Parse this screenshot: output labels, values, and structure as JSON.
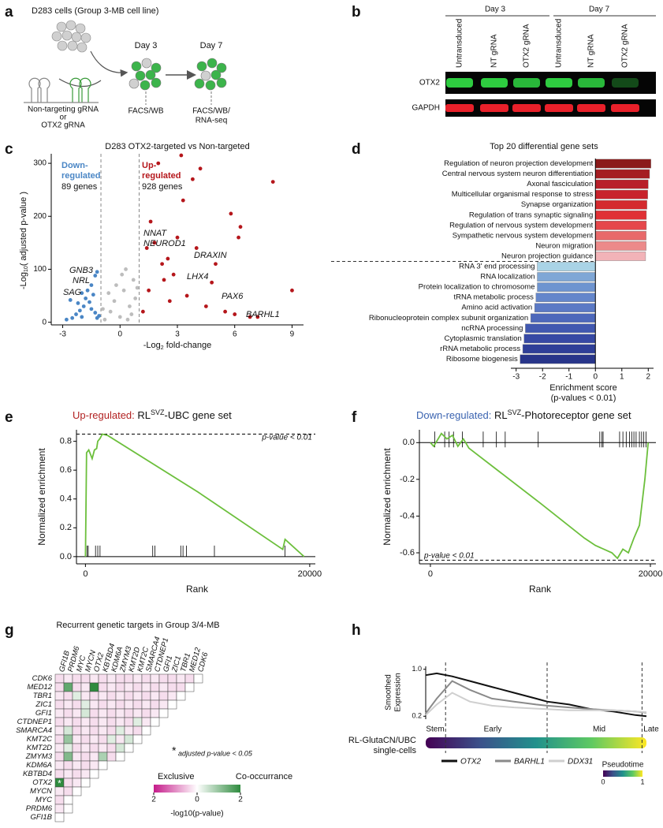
{
  "panel_labels": [
    "a",
    "b",
    "c",
    "d",
    "e",
    "f",
    "g",
    "h"
  ],
  "panel_a": {
    "cell_line": "D283 cells (Group 3-MB cell line)",
    "timepoints": [
      "Day 3",
      "Day 7"
    ],
    "grna": [
      "Non-targeting gRNA",
      "or",
      "OTX2 gRNA"
    ],
    "readouts": [
      "FACS/WB",
      "FACS/WB/",
      "RNA-seq"
    ]
  },
  "panel_b": {
    "days": [
      "Day 3",
      "Day 7"
    ],
    "lanes": [
      "Untransduced",
      "NT gRNA",
      "OTX2 gRNA",
      "Untransduced",
      "NT gRNA",
      "OTX2 gRNA"
    ],
    "proteins": [
      "OTX2",
      "GAPDH"
    ]
  },
  "chart_data": [
    {
      "type": "scatter",
      "title": "D283 OTX2-targeted vs Non-targeted",
      "x_label": [
        "-Log",
        "2",
        " fold-change"
      ],
      "y_label": [
        "-Log",
        "10",
        "( adjusted p-value )"
      ],
      "xlim": [
        -3.6,
        9.6
      ],
      "ylim": [
        -5,
        318
      ],
      "xticks": [
        -3,
        0,
        3,
        6,
        9
      ],
      "yticks": [
        0,
        100,
        200,
        300
      ],
      "thresholds": [
        -1,
        1
      ],
      "down_label": [
        "Down-",
        "regulated",
        "89 genes"
      ],
      "up_label": [
        "Up-",
        "regulated",
        "928 genes"
      ],
      "gene_labels": [
        "GNB3",
        "NRL",
        "SAG",
        "NNAT",
        "NEUROD1",
        "DRAXIN",
        "LHX4",
        "PAX6",
        "BARHL1"
      ],
      "series": [
        {
          "color": "#4a86c5",
          "x": [
            -2.8,
            -2.5,
            -2.3,
            -2.1,
            -2.0,
            -1.9,
            -1.8,
            -1.7,
            -1.6,
            -1.5,
            -1.4,
            -1.3,
            -1.2,
            -1.1,
            -2.2,
            -2.6,
            -1.5,
            -1.3,
            -1.2,
            -2.0
          ],
          "values": [
            5,
            8,
            15,
            22,
            10,
            30,
            45,
            60,
            38,
            25,
            52,
            18,
            8,
            12,
            36,
            42,
            70,
            88,
            95,
            55
          ]
        },
        {
          "color": "#bdbdbd",
          "x": [
            -0.8,
            -0.5,
            -0.3,
            0,
            0.2,
            0.5,
            0.7,
            -0.2,
            0.4,
            0.8,
            -0.6,
            0.1,
            0.6,
            -0.9,
            0.3,
            0.9
          ],
          "values": [
            5,
            20,
            40,
            10,
            60,
            30,
            80,
            70,
            5,
            45,
            55,
            90,
            15,
            25,
            100,
            65
          ]
        },
        {
          "color": "#b5161b",
          "x": [
            1.2,
            1.5,
            2,
            2.3,
            2.5,
            3,
            3.2,
            1.8,
            1.6,
            2.8,
            3.5,
            4,
            4.5,
            5,
            5.5,
            6,
            6.2,
            6.8,
            7.2,
            8,
            9,
            4.2,
            3.8,
            5.8,
            6.3,
            2.2,
            1.4,
            3.3,
            2.6,
            4.8
          ],
          "values": [
            20,
            60,
            300,
            80,
            120,
            160,
            315,
            150,
            190,
            90,
            50,
            140,
            30,
            110,
            20,
            15,
            160,
            10,
            10,
            265,
            60,
            290,
            270,
            205,
            180,
            110,
            140,
            230,
            40,
            75
          ]
        }
      ]
    },
    {
      "type": "barh",
      "title": "Top 20 differential gene sets",
      "x_label": [
        "Enrichment score",
        "(p-values < 0.01)"
      ],
      "xlim": [
        -3.2,
        2.2
      ],
      "xticks": [
        -3,
        -2,
        -1,
        0,
        1,
        2
      ],
      "categories": [
        "Regulation of neuron projection development",
        "Central nervous system neuron differentiation",
        "Axonal fasciculation",
        "Multicellular organismal response to stress",
        "Synapse organization",
        "Regulation of trans synaptic signaling",
        "Regulation of nervous system development",
        "Sympathetic nervous system development",
        "Neuron migration",
        "Neuron projection guidance",
        "RNA 3' end processing",
        "RNA localization",
        "Protein localization to chromosome",
        "tRNA metabolic process",
        "Amino acid activation",
        "Ribonucleoprotein complex subunit organization",
        "ncRNA processing",
        "Cytoplasmic translation",
        "rRNA metabolic process",
        "Ribosome biogenesis"
      ],
      "values": [
        2.1,
        2.05,
        2.0,
        1.98,
        1.95,
        1.93,
        1.93,
        1.92,
        1.92,
        1.9,
        -2.2,
        -2.2,
        -2.2,
        -2.25,
        -2.3,
        -2.45,
        -2.65,
        -2.7,
        -2.75,
        -2.85
      ],
      "colors": [
        "#8b1a1a",
        "#a51d22",
        "#b8202a",
        "#c8232c",
        "#d42a2e",
        "#e03035",
        "#e5474b",
        "#e8696a",
        "#ec8a8a",
        "#f2b3b8",
        "#a9d3e6",
        "#7fa7d6",
        "#6e94d0",
        "#6486cb",
        "#5b79c5",
        "#4d68bb",
        "#4158b0",
        "#3749a4",
        "#2f3f98",
        "#28358a"
      ]
    },
    {
      "type": "line",
      "title": [
        "Up-regulated:",
        " RL",
        "SVZ",
        "-UBC gene set"
      ],
      "title_color": "#b22222",
      "x_label": "Rank",
      "y_label": "Normalized enrichment",
      "annotation": "p-value < 0.01",
      "xlim": [
        -800,
        20500
      ],
      "ylim": [
        -0.05,
        0.88
      ],
      "xticks": [
        0,
        20000
      ],
      "yticks": [
        {
          "value": 0,
          "label": "0.0"
        },
        0.2,
        0.4,
        0.6,
        0.8
      ],
      "peak": 0.85,
      "series": [
        {
          "color": "#6cbf3c",
          "x": [
            0,
            100,
            300,
            600,
            800,
            1000,
            1100,
            1300,
            1500,
            2000,
            10000,
            17600,
            17800,
            19500
          ],
          "values": [
            0,
            0.72,
            0.74,
            0.68,
            0.74,
            0.75,
            0.8,
            0.82,
            0.85,
            0.84,
            0.45,
            0.05,
            0.12,
            0
          ]
        }
      ],
      "hits": [
        150,
        250,
        900,
        1100,
        1300,
        6000,
        6200,
        8500,
        8700,
        9000,
        11500,
        17800
      ]
    },
    {
      "type": "line",
      "title": [
        "Down-regulated:",
        " RL",
        "SVZ",
        "-Photoreceptor gene set"
      ],
      "title_color": "#3a63b0",
      "x_label": "Rank",
      "y_label": "Normalized enrichment",
      "annotation": "p-value < 0.01",
      "xlim": [
        -1000,
        20500
      ],
      "ylim": [
        -0.66,
        0.07
      ],
      "xticks": [
        0,
        20000
      ],
      "yticks": [
        {
          "value": 0,
          "label": "0.0"
        },
        -0.2,
        -0.4,
        -0.6
      ],
      "peak": -0.64,
      "series": [
        {
          "color": "#6cbf3c",
          "x": [
            0,
            300,
            1000,
            1500,
            2000,
            2500,
            3000,
            3500,
            10000,
            14000,
            15000,
            16500,
            17000,
            17500,
            18000,
            18500,
            19000,
            19500,
            19800
          ],
          "values": [
            0,
            -0.02,
            0.05,
            0.02,
            0.04,
            -0.02,
            0.02,
            -0.03,
            -0.33,
            -0.52,
            -0.56,
            -0.6,
            -0.63,
            -0.58,
            -0.6,
            -0.52,
            -0.45,
            -0.2,
            0
          ]
        }
      ],
      "hits": [
        400,
        1300,
        1700,
        2100,
        2900,
        4800,
        6000,
        6800,
        9800,
        15400,
        15600,
        15700,
        17200,
        17500,
        17800,
        18100,
        18300,
        18500,
        18700,
        19000,
        19200,
        19400,
        19600
      ]
    },
    {
      "type": "heatmap",
      "title": "Recurrent genetic targets in Group 3/4-MB",
      "rows": [
        "CDK6",
        "MED12",
        "TBR1",
        "ZIC1",
        "GFI1",
        "CTDNEP1",
        "SMARCA4",
        "KMT2C",
        "KMT2D",
        "ZMYM3",
        "KDM6A",
        "KBTBD4",
        "OTX2",
        "MYCN",
        "MYC",
        "PRDM6",
        "GFI1B"
      ],
      "columns": [
        "GFI1B",
        "PRDM6",
        "MYC",
        "MYCN",
        "OTX2",
        "KBTBD4",
        "KDM6A",
        "ZMYM3",
        "KMT2D",
        "KMT2C",
        "SMARCA4",
        "CTDNEP1",
        "GFI1",
        "ZIC1",
        "TBR1",
        "MED12",
        "CDK6"
      ],
      "values": [
        [
          -0.3,
          -0.2,
          -0.3,
          -0.3,
          -0.2,
          -0.3,
          -0.2,
          -0.3,
          -0.3,
          -0.2,
          -0.3,
          -0.2,
          -0.3,
          -0.3,
          -0.2,
          -0.3,
          null
        ],
        [
          -0.3,
          1.5,
          -0.3,
          -0.2,
          2.0,
          -0.3,
          -0.2,
          -0.3,
          -0.2,
          -0.3,
          -0.2,
          -0.3,
          -0.2,
          -0.3,
          -0.3,
          null
        ],
        [
          -0.2,
          -0.3,
          0.3,
          -0.2,
          -0.3,
          -0.2,
          -0.3,
          -0.2,
          -0.3,
          -0.2,
          -0.3,
          -0.2,
          -0.3,
          -0.2,
          null
        ],
        [
          -0.3,
          -0.2,
          -0.3,
          0.3,
          -0.2,
          -0.3,
          -0.2,
          -0.3,
          -0.2,
          -0.3,
          -0.2,
          -0.3,
          -0.2,
          null
        ],
        [
          -0.2,
          -0.3,
          -0.2,
          0.4,
          -0.3,
          -0.2,
          -0.3,
          -0.2,
          -0.3,
          -0.2,
          -0.3,
          -0.2,
          null
        ],
        [
          -0.3,
          -0.2,
          -0.3,
          -0.2,
          -0.3,
          -0.2,
          -0.3,
          -0.2,
          -0.3,
          0.3,
          -0.2,
          null
        ],
        [
          -0.2,
          0.4,
          -0.3,
          -0.2,
          -0.3,
          -0.2,
          -0.3,
          0.3,
          -0.2,
          -0.3,
          null
        ],
        [
          -0.3,
          1.0,
          -0.2,
          -0.3,
          -0.2,
          -0.3,
          0.3,
          -0.2,
          0.4,
          null
        ],
        [
          -0.2,
          0.3,
          -0.3,
          -0.2,
          -0.3,
          -0.2,
          -0.3,
          0.4,
          null
        ],
        [
          -0.3,
          1.2,
          -0.2,
          -0.3,
          -0.2,
          0.8,
          -0.3,
          null
        ],
        [
          -0.2,
          -0.3,
          -0.2,
          -0.3,
          -0.2,
          null
        ],
        [
          -0.3,
          -0.2,
          -0.3,
          -0.2,
          null
        ],
        [
          2.2,
          -0.3,
          -0.2,
          null
        ],
        [
          -0.2,
          -0.3,
          null
        ],
        [
          -0.3,
          null
        ],
        [
          -0.2,
          null
        ],
        [
          null
        ]
      ],
      "significant": [
        [
          12,
          0
        ]
      ],
      "significance_mark": "*",
      "significance_note": "adjusted p-value < 0.05",
      "color_scale": {
        "colors": [
          "#c51b8a",
          "#ffffff",
          "#2e8b3e"
        ],
        "lim": [
          -2,
          2
        ],
        "ticks": [
          {
            "value": -2,
            "label": "2"
          },
          0,
          2
        ],
        "low_label": "Exclusive",
        "high_label": "Co-occurrance",
        "label": "-log10(p-value)"
      }
    },
    {
      "type": "line",
      "y_label": [
        "Smoothed",
        "Expression"
      ],
      "xlim": [
        0,
        1
      ],
      "ylim": [
        0.15,
        1.05
      ],
      "yticks": [
        0.2,
        {
          "value": 1,
          "label": "1.0"
        }
      ],
      "stages": [
        "Stem",
        "Early",
        "Mid",
        "Late"
      ],
      "stage_boundaries": [
        0.09,
        0.55,
        0.98
      ],
      "cells_label": [
        "RL-GlutaCN/UBC",
        "single-cells"
      ],
      "colorbar": {
        "label": "Pseudotime",
        "ticks": [
          0,
          1
        ]
      },
      "series": [
        {
          "name": "OTX2",
          "color": "#111111",
          "x": [
            0,
            0.05,
            0.12,
            0.2,
            0.3,
            0.4,
            0.5,
            0.55,
            0.65,
            0.75,
            0.85,
            0.95,
            1
          ],
          "values": [
            0.9,
            0.93,
            0.88,
            0.8,
            0.7,
            0.6,
            0.5,
            0.45,
            0.4,
            0.32,
            0.28,
            0.22,
            0.2
          ]
        },
        {
          "name": "BARHL1",
          "color": "#8a8a8a",
          "x": [
            0,
            0.05,
            0.12,
            0.2,
            0.3,
            0.4,
            0.5,
            0.55,
            0.65,
            0.75,
            0.85,
            0.95,
            1
          ],
          "values": [
            0.25,
            0.5,
            0.8,
            0.65,
            0.5,
            0.45,
            0.4,
            0.38,
            0.35,
            0.32,
            0.3,
            0.28,
            0.26
          ]
        },
        {
          "name": "DDX31",
          "color": "#cfcfcf",
          "x": [
            0,
            0.05,
            0.12,
            0.2,
            0.3,
            0.4,
            0.5,
            0.55,
            0.65,
            0.75,
            0.85,
            0.95,
            1
          ],
          "values": [
            0.22,
            0.4,
            0.6,
            0.45,
            0.38,
            0.35,
            0.33,
            0.32,
            0.3,
            0.3,
            0.3,
            0.28,
            0.27
          ]
        }
      ]
    }
  ]
}
